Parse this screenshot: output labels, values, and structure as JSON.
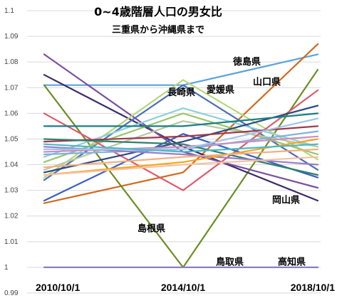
{
  "chart_data": {
    "type": "line",
    "title": "0~4歳階層人口の男女比",
    "subtitle": "三重県から沖縄県まで",
    "xlabel": "",
    "ylabel": "",
    "categories": [
      "2010/10/1",
      "2014/10/1",
      "2018/10/1"
    ],
    "ylim": [
      0.99,
      1.1
    ],
    "yticks": [
      0.99,
      1,
      1.01,
      1.02,
      1.03,
      1.04,
      1.05,
      1.06,
      1.07,
      1.08,
      1.09,
      1.1
    ],
    "grid": true,
    "legend": "none",
    "annotations": [
      {
        "text": "徳島県",
        "x": "2014/10/1",
        "y": 1.079
      },
      {
        "text": "山口県",
        "x": "2014/10/1",
        "y": 1.071
      },
      {
        "text": "長崎県",
        "x": "2014/10/1",
        "y": 1.067
      },
      {
        "text": "愛媛県",
        "x": "2014/10/1",
        "y": 1.068
      },
      {
        "text": "岡山県",
        "x": "2018/10/1",
        "y": 1.025
      },
      {
        "text": "島根県",
        "x": "2014/10/1",
        "y": 1.014
      },
      {
        "text": "鳥取県",
        "x": "2014/10/1",
        "y": 1.001
      },
      {
        "text": "高知県",
        "x": "2018/10/1",
        "y": 1.001
      }
    ],
    "series": [
      {
        "values": [
          1.071,
          1.071,
          1.083
        ],
        "color": "#5ba3dc"
      },
      {
        "values": [
          1.025,
          1.037,
          1.087
        ],
        "color": "#d2691e"
      },
      {
        "values": [
          1.071,
          1.0,
          1.077
        ],
        "color": "#6b8e23"
      },
      {
        "values": [
          1.075,
          1.047,
          1.026
        ],
        "color": "#3b2a6b"
      },
      {
        "values": [
          1.083,
          1.045,
          1.031
        ],
        "color": "#7a4fa0"
      },
      {
        "values": [
          1.034,
          1.071,
          1.038
        ],
        "color": "#4a6fb8"
      },
      {
        "values": [
          1.035,
          1.073,
          1.042
        ],
        "color": "#b7d77a"
      },
      {
        "values": [
          1.041,
          1.06,
          1.044
        ],
        "color": "#9bc56b"
      },
      {
        "values": [
          1.043,
          1.062,
          1.047
        ],
        "color": "#8fd0d8"
      },
      {
        "values": [
          1.038,
          1.057,
          1.047
        ],
        "color": "#b8c8a0"
      },
      {
        "values": [
          1.06,
          1.03,
          1.069
        ],
        "color": "#e05a6a"
      },
      {
        "values": [
          1.026,
          1.052,
          1.035
        ],
        "color": "#3a5fbf"
      },
      {
        "values": [
          1.037,
          1.049,
          1.063
        ],
        "color": "#2c4a80"
      },
      {
        "values": [
          1.055,
          1.055,
          1.06
        ],
        "color": "#1a7f86"
      },
      {
        "values": [
          1.049,
          1.051,
          1.055
        ],
        "color": "#9e3a4a"
      },
      {
        "values": [
          1.044,
          1.046,
          1.053
        ],
        "color": "#7fb0e0"
      },
      {
        "values": [
          1.05,
          1.048,
          1.036
        ],
        "color": "#2e7f6e"
      },
      {
        "values": [
          1.047,
          1.044,
          1.04
        ],
        "color": "#9a7fc0"
      },
      {
        "values": [
          1.036,
          1.041,
          1.05
        ],
        "color": "#f5a623"
      },
      {
        "values": [
          1.045,
          1.047,
          1.051
        ],
        "color": "#c88fc0"
      },
      {
        "values": [
          1.039,
          1.043,
          1.046
        ],
        "color": "#f0b080"
      },
      {
        "values": [
          1.036,
          1.04,
          1.043
        ],
        "color": "#f5c2a0"
      },
      {
        "values": [
          1.046,
          1.046,
          1.058
        ],
        "color": "#a0c4e8"
      },
      {
        "values": [
          1.048,
          1.045,
          1.048
        ],
        "color": "#4db8c8"
      },
      {
        "values": [
          1.0,
          1.0,
          1.0
        ],
        "color": "#8e7cc3"
      }
    ]
  }
}
